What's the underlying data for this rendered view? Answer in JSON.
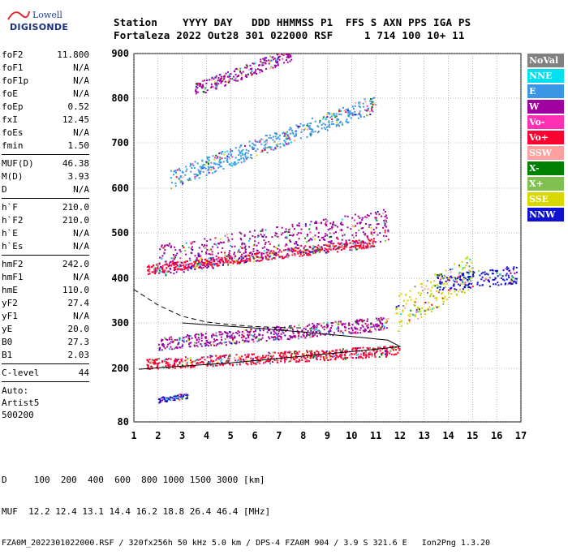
{
  "header": {
    "logo_top": "Lowell",
    "logo_bottom": "DIGISONDE",
    "line1": "Station    YYYY DAY   DDD HHMMSS P1  FFS S AXN PPS IGA PS",
    "line2": "Fortaleza 2022 Out28 301 022000 RSF     1 714 100 10+ 11"
  },
  "params": {
    "group1": [
      {
        "k": "foF2",
        "v": "11.800"
      },
      {
        "k": "foF1",
        "v": "N/A"
      },
      {
        "k": "foF1p",
        "v": "N/A"
      },
      {
        "k": "foE",
        "v": "N/A"
      },
      {
        "k": "foEp",
        "v": "0.52"
      },
      {
        "k": "fxI",
        "v": "12.45"
      },
      {
        "k": "foEs",
        "v": "N/A"
      },
      {
        "k": "fmin",
        "v": "1.50"
      }
    ],
    "group2": [
      {
        "k": "MUF(D)",
        "v": "46.38"
      },
      {
        "k": "M(D)",
        "v": "3.93"
      },
      {
        "k": "D",
        "v": "N/A"
      }
    ],
    "group3": [
      {
        "k": "h`F",
        "v": "210.0"
      },
      {
        "k": "h`F2",
        "v": "210.0"
      },
      {
        "k": "h`E",
        "v": "N/A"
      },
      {
        "k": "h`Es",
        "v": "N/A"
      }
    ],
    "group4": [
      {
        "k": "hmF2",
        "v": "242.0"
      },
      {
        "k": "hmF1",
        "v": "N/A"
      },
      {
        "k": "hmE",
        "v": "110.0"
      },
      {
        "k": "yF2",
        "v": "27.4"
      },
      {
        "k": "yF1",
        "v": "N/A"
      },
      {
        "k": "yE",
        "v": "20.0"
      },
      {
        "k": "B0",
        "v": "27.3"
      },
      {
        "k": "B1",
        "v": "2.03"
      }
    ],
    "group5": [
      {
        "k": "C-level",
        "v": "44"
      }
    ],
    "auto_lines": [
      "Auto:",
      "Artist5",
      "500200"
    ]
  },
  "legend": [
    {
      "label": "NoVal",
      "color": "#808080"
    },
    {
      "label": "NNE",
      "color": "#00e0f0"
    },
    {
      "label": "E",
      "color": "#3c96e6"
    },
    {
      "label": "W",
      "color": "#a000a0"
    },
    {
      "label": "Vo-",
      "color": "#ff30b4"
    },
    {
      "label": "Vo+",
      "color": "#ff0030"
    },
    {
      "label": "SSW",
      "color": "#ffa0a0"
    },
    {
      "label": "X-",
      "color": "#008000"
    },
    {
      "label": "X+",
      "color": "#80c050"
    },
    {
      "label": "SSE",
      "color": "#d8d800"
    },
    {
      "label": "NNW",
      "color": "#1010d0"
    }
  ],
  "footer": {
    "line1": "D     100  200  400  600  800 1000 1500 3000 [km]",
    "line2": "MUF  12.2 12.4 13.1 14.4 16.2 18.8 26.4 46.4 [MHz]",
    "line3": "FZA0M_2022301022000.RSF / 320fx256h 50 kHz 5.0 km / DPS-4 FZA0M 904 / 3.9 S 321.6 E   Ion2Png 1.3.20"
  },
  "chart_data": {
    "type": "scatter",
    "xlim": [
      1,
      17
    ],
    "ylim": [
      80,
      900
    ],
    "x_ticks": [
      1,
      2,
      3,
      4,
      5,
      6,
      7,
      8,
      9,
      10,
      11,
      12,
      13,
      14,
      15,
      16,
      17
    ],
    "y_ticks": [
      80,
      200,
      300,
      400,
      500,
      600,
      700,
      800,
      900
    ],
    "grid": true,
    "traces": [
      {
        "name": "F-trace",
        "color": "#ff0030",
        "x0": 1.5,
        "x1": 12.0,
        "y0": 210,
        "y1": 240,
        "spread": 12
      },
      {
        "name": "F-trace-magenta",
        "color": "#a000a0",
        "x0": 2.0,
        "x1": 11.5,
        "y0": 255,
        "y1": 300,
        "spread": 15
      },
      {
        "name": "spread-F",
        "color": "#d8d800",
        "x0": 11.8,
        "x1": 15.0,
        "y0": 320,
        "y1": 420,
        "spread": 40
      },
      {
        "name": "spread-F-nnw",
        "color": "#1010d0",
        "x0": 13.5,
        "x1": 16.8,
        "y0": 390,
        "y1": 410,
        "spread": 20
      },
      {
        "name": "2-hop",
        "color": "#ff0030",
        "x0": 1.5,
        "x1": 11.0,
        "y0": 420,
        "y1": 480,
        "spread": 10
      },
      {
        "name": "2-hop-w",
        "color": "#a000a0",
        "x0": 2.0,
        "x1": 11.5,
        "y0": 440,
        "y1": 520,
        "spread": 35
      },
      {
        "name": "3-hop",
        "color": "#3c96e6",
        "x0": 2.5,
        "x1": 11.0,
        "y0": 620,
        "y1": 790,
        "spread": 20
      },
      {
        "name": "4-hop",
        "color": "#a000a0",
        "x0": 3.5,
        "x1": 7.5,
        "y0": 820,
        "y1": 900,
        "spread": 15
      },
      {
        "name": "low-trace",
        "color": "#1010d0",
        "x0": 2.0,
        "x1": 3.2,
        "y0": 130,
        "y1": 140,
        "spread": 6
      }
    ],
    "profile_dashed": [
      [
        1.0,
        375
      ],
      [
        2.0,
        340
      ],
      [
        3.0,
        315
      ],
      [
        4.0,
        302
      ],
      [
        5.0,
        296
      ],
      [
        6.0,
        292
      ],
      [
        7.0,
        290
      ],
      [
        8.0,
        289
      ]
    ],
    "profile_solid": [
      [
        1.2,
        198
      ],
      [
        3.0,
        205
      ],
      [
        5.0,
        212
      ],
      [
        7.0,
        222
      ],
      [
        9.0,
        232
      ],
      [
        11.0,
        242
      ],
      [
        12.0,
        248
      ],
      [
        11.5,
        262
      ],
      [
        10.0,
        270
      ],
      [
        8.0,
        280
      ],
      [
        6.0,
        289
      ],
      [
        4.0,
        296
      ],
      [
        3.0,
        300
      ]
    ]
  }
}
